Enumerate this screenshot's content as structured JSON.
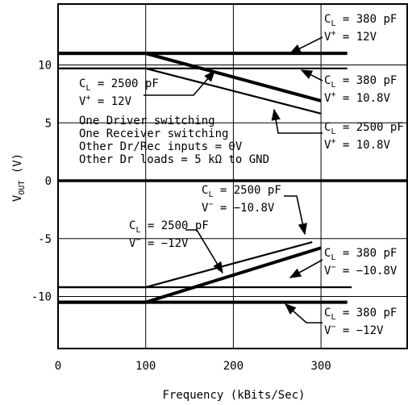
{
  "chart_data": {
    "type": "line",
    "title": "",
    "xlabel": "Frequency (kBits/Sec)",
    "ylabel": {
      "main": "V",
      "sub": "OUT",
      "unit": " (V)"
    },
    "xlim": [
      0,
      400
    ],
    "ylim": [
      -15,
      15
    ],
    "grid": true,
    "xticks": [
      "0",
      "100",
      "200",
      "300"
    ],
    "yticks": [
      "10",
      "5",
      "0",
      "-5",
      "-10"
    ],
    "series": [
      {
        "name": "CL = 380 pF, V+ = 12V",
        "x": [
          0,
          330
        ],
        "y": [
          11.0,
          11.0
        ],
        "weight": "heavy"
      },
      {
        "name": "CL = 380 pF, V+ = 10.8V",
        "x": [
          0,
          330
        ],
        "y": [
          9.7,
          9.7
        ],
        "weight": "light"
      },
      {
        "name": "CL = 2500 pF, V+ = 12V",
        "x": [
          0,
          100,
          300
        ],
        "y": [
          11.0,
          11.0,
          6.9
        ],
        "weight": "heavy"
      },
      {
        "name": "CL = 2500 pF, V+ = 10.8V",
        "x": [
          0,
          100,
          300
        ],
        "y": [
          9.7,
          9.7,
          5.8
        ],
        "weight": "light"
      },
      {
        "name": "CL = 380 pF, V- = -10.8V",
        "x": [
          0,
          335
        ],
        "y": [
          -9.2,
          -9.2
        ],
        "weight": "light"
      },
      {
        "name": "CL = 380 pF, V- = -12V",
        "x": [
          0,
          330
        ],
        "y": [
          -10.5,
          -10.5
        ],
        "weight": "heavy"
      },
      {
        "name": "CL = 2500 pF, V- = -10.8V",
        "x": [
          0,
          100,
          290
        ],
        "y": [
          -9.2,
          -9.2,
          -5.3
        ],
        "weight": "light"
      },
      {
        "name": "CL = 2500 pF, V- = -12V",
        "x": [
          0,
          100,
          300
        ],
        "y": [
          -10.5,
          -10.5,
          -5.8
        ],
        "weight": "heavy"
      }
    ],
    "conditions": [
      "One Driver switching",
      "One Receiver switching",
      "Other Dr/Rec inputs = 0V",
      "Other Dr loads = 5 kΩ to GND"
    ],
    "annotations": [
      {
        "cap": "C",
        "capsub": "L",
        "capval": " = 380 pF",
        "sup": "V",
        "supsign": "+",
        "supval": " = 12V"
      },
      {
        "cap": "C",
        "capsub": "L",
        "capval": " = 2500 pF",
        "sup": "V",
        "supsign": "+",
        "supval": " = 12V"
      },
      {
        "cap": "C",
        "capsub": "L",
        "capval": " = 380 pF",
        "sup": "V",
        "supsign": "+",
        "supval": " = 10.8V"
      },
      {
        "cap": "C",
        "capsub": "L",
        "capval": " = 2500 pF",
        "sup": "V",
        "supsign": "+",
        "supval": " = 10.8V"
      },
      {
        "cap": "C",
        "capsub": "L",
        "capval": " = 2500 pF",
        "sup": "V",
        "supsign": "−",
        "supval": " = −10.8V"
      },
      {
        "cap": "C",
        "capsub": "L",
        "capval": " = 2500 pF",
        "sup": "V",
        "supsign": "−",
        "supval": " = −12V"
      },
      {
        "cap": "C",
        "capsub": "L",
        "capval": " = 380 pF",
        "sup": "V",
        "supsign": "−",
        "supval": " = −10.8V"
      },
      {
        "cap": "C",
        "capsub": "L",
        "capval": " = 380 pF",
        "sup": "V",
        "supsign": "−",
        "supval": " = −12V"
      }
    ]
  }
}
